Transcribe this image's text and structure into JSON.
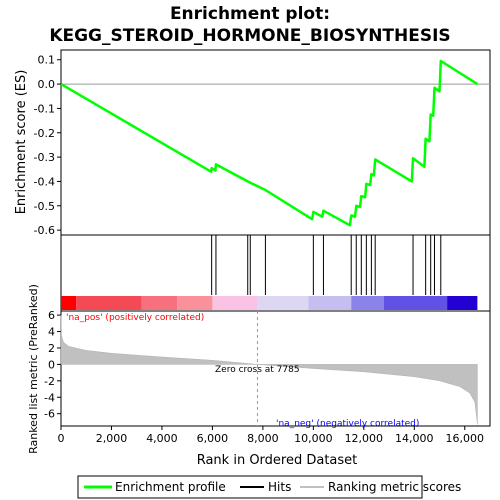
{
  "chart_data": {
    "type": "line",
    "title_line1": "Enrichment plot:",
    "title_line2": "KEGG_STEROID_HORMONE_BIOSYNTHESIS",
    "xlabel": "Rank in Ordered Dataset",
    "ylabel_top": "Enrichment score (ES)",
    "ylabel_bottom": "Ranked list metric (PreRanked)",
    "xlim": [
      0,
      17000
    ],
    "x_ticks": [
      0,
      2000,
      4000,
      6000,
      8000,
      10000,
      12000,
      14000,
      16000
    ],
    "x_tick_labels": [
      "0",
      "2,000",
      "4,000",
      "6,000",
      "8,000",
      "10,000",
      "12,000",
      "14,000",
      "16,000"
    ],
    "es_ylim": [
      -0.62,
      0.14
    ],
    "es_ticks": [
      -0.6,
      -0.5,
      -0.4,
      -0.3,
      -0.2,
      -0.1,
      0.0,
      0.1
    ],
    "es_tick_labels": [
      "-0.6",
      "-0.5",
      "-0.4",
      "-0.3",
      "-0.2",
      "-0.1",
      "0.0",
      "0.1"
    ],
    "metric_ylim": [
      -7.5,
      6.5
    ],
    "metric_ticks": [
      -6,
      -4,
      -2,
      0,
      2,
      4,
      6
    ],
    "metric_tick_labels": [
      "-6",
      "-4",
      "-2",
      "0",
      "2",
      "4",
      "6"
    ],
    "series": [
      {
        "name": "Enrichment profile",
        "color": "#00ff00",
        "points": [
          [
            0,
            0.0
          ],
          [
            5950,
            -0.36
          ],
          [
            5970,
            -0.345
          ],
          [
            6120,
            -0.355
          ],
          [
            6140,
            -0.33
          ],
          [
            7400,
            -0.4
          ],
          [
            7500,
            -0.405
          ],
          [
            8100,
            -0.435
          ],
          [
            9950,
            -0.555
          ],
          [
            10000,
            -0.525
          ],
          [
            10350,
            -0.545
          ],
          [
            10400,
            -0.52
          ],
          [
            11450,
            -0.58
          ],
          [
            11500,
            -0.54
          ],
          [
            11650,
            -0.545
          ],
          [
            11700,
            -0.5
          ],
          [
            11850,
            -0.505
          ],
          [
            11900,
            -0.46
          ],
          [
            12050,
            -0.465
          ],
          [
            12100,
            -0.41
          ],
          [
            12250,
            -0.415
          ],
          [
            12300,
            -0.37
          ],
          [
            12400,
            -0.375
          ],
          [
            12450,
            -0.31
          ],
          [
            13900,
            -0.4
          ],
          [
            13950,
            -0.305
          ],
          [
            14400,
            -0.34
          ],
          [
            14450,
            -0.225
          ],
          [
            14600,
            -0.235
          ],
          [
            14650,
            -0.125
          ],
          [
            14750,
            -0.13
          ],
          [
            14800,
            -0.015
          ],
          [
            15000,
            -0.03
          ],
          [
            15050,
            0.095
          ],
          [
            16500,
            0.0
          ]
        ]
      }
    ],
    "hits": [
      5970,
      6140,
      7400,
      7500,
      8100,
      10000,
      10400,
      11500,
      11700,
      11900,
      12100,
      12300,
      12450,
      13950,
      14450,
      14650,
      14800,
      15050
    ],
    "metric_curve": [
      [
        0,
        6.0
      ],
      [
        20,
        3.5
      ],
      [
        100,
        2.7
      ],
      [
        300,
        2.2
      ],
      [
        1000,
        1.7
      ],
      [
        2000,
        1.35
      ],
      [
        4000,
        0.9
      ],
      [
        6000,
        0.5
      ],
      [
        7785,
        0.0
      ],
      [
        10000,
        -0.5
      ],
      [
        12000,
        -0.9
      ],
      [
        14000,
        -1.5
      ],
      [
        15000,
        -2.0
      ],
      [
        15800,
        -2.7
      ],
      [
        16200,
        -3.5
      ],
      [
        16400,
        -4.6
      ],
      [
        16500,
        -7.3
      ]
    ],
    "zero_cross_label": "Zero cross at 7785",
    "zero_cross_x": 7785,
    "pos_label": "'na_pos' (positively correlated)",
    "neg_label": "'na_neg' (negatively correlated)",
    "pos_color": "#ff0000",
    "neg_color": "#0000ff",
    "heat_segments": [
      {
        "start": 0,
        "end": 600,
        "color": "#ff0000"
      },
      {
        "start": 600,
        "end": 3200,
        "color": "#f44a56"
      },
      {
        "start": 3200,
        "end": 4600,
        "color": "#f7707e"
      },
      {
        "start": 4600,
        "end": 6000,
        "color": "#fa909a"
      },
      {
        "start": 6000,
        "end": 7800,
        "color": "#fbc3e3"
      },
      {
        "start": 7800,
        "end": 9800,
        "color": "#ddd7f4"
      },
      {
        "start": 9800,
        "end": 11500,
        "color": "#c5bff0"
      },
      {
        "start": 11500,
        "end": 12800,
        "color": "#8b82ea"
      },
      {
        "start": 12800,
        "end": 15300,
        "color": "#6151e4"
      },
      {
        "start": 15300,
        "end": 16500,
        "color": "#2400d2"
      }
    ],
    "legend": [
      {
        "label": "Enrichment profile",
        "color": "#00ff00"
      },
      {
        "label": "Hits",
        "color": "#000000"
      },
      {
        "label": "Ranking metric scores",
        "color": "#c0c0c0"
      }
    ]
  }
}
